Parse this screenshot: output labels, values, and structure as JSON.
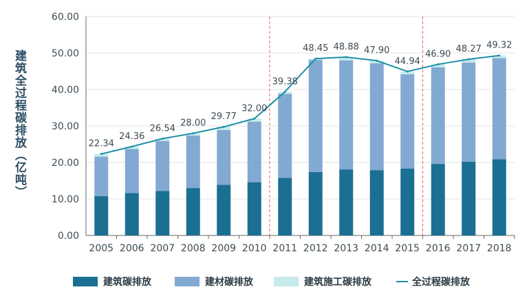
{
  "chart_data": {
    "type": "bar",
    "title": "",
    "xlabel": "",
    "ylabel": "建筑全过程碳排放（亿吨）",
    "ylim": [
      0,
      60
    ],
    "yticks": [
      "0.00",
      "10.00",
      "20.00",
      "30.00",
      "40.00",
      "50.00",
      "60.00"
    ],
    "grid": true,
    "legend_position": "bottom",
    "categories": [
      "2005",
      "2006",
      "2007",
      "2008",
      "2009",
      "2010",
      "2011",
      "2012",
      "2013",
      "2014",
      "2015",
      "2016",
      "2017",
      "2018"
    ],
    "series": [
      {
        "name": "建筑碳排放",
        "kind": "stacked-bar",
        "color": "#1a6f93",
        "values": [
          10.8,
          11.6,
          12.2,
          13.0,
          13.9,
          14.6,
          15.8,
          17.4,
          18.1,
          17.9,
          18.3,
          19.6,
          20.2,
          20.9
        ]
      },
      {
        "name": "建材碳排放",
        "kind": "stacked-bar",
        "color": "#82a9d1",
        "values": [
          10.8,
          12.1,
          13.7,
          14.4,
          15.0,
          16.6,
          23.0,
          30.7,
          29.9,
          29.3,
          25.9,
          26.5,
          27.2,
          27.7
        ]
      },
      {
        "name": "建筑施工碳排放",
        "kind": "stacked-bar",
        "color": "#c6ebec",
        "values": [
          0.74,
          0.66,
          0.64,
          0.6,
          0.87,
          0.8,
          0.58,
          0.35,
          0.88,
          0.7,
          0.74,
          0.8,
          0.87,
          0.72
        ]
      },
      {
        "name": "全过程碳排放",
        "kind": "line",
        "color": "#1f8fa8",
        "values": [
          22.34,
          24.36,
          26.54,
          28.0,
          29.77,
          32.0,
          39.38,
          48.45,
          48.88,
          47.9,
          44.94,
          46.9,
          48.27,
          49.32
        ],
        "labels": [
          "22.34",
          "24.36",
          "26.54",
          "28.00",
          "29.77",
          "32.00",
          "39.38",
          "48.45",
          "48.88",
          "47.90",
          "44.94",
          "46.90",
          "48.27",
          "49.32"
        ]
      }
    ],
    "separators_after": [
      "2010",
      "2015"
    ],
    "colors": {
      "axis": "#666666",
      "grid": "#e3e3e3",
      "separator": "#e0615c",
      "text": "#3c4a52"
    }
  }
}
